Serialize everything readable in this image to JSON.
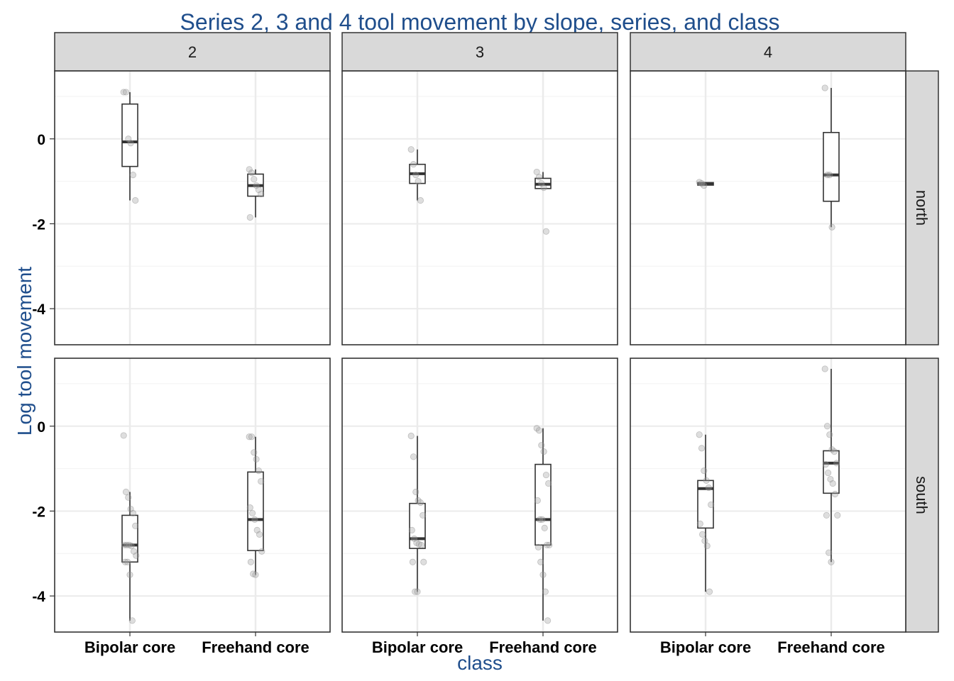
{
  "chart_data": {
    "type": "box",
    "title": "Series 2, 3 and 4 tool movement by slope, series, and class",
    "xlabel": "class",
    "ylabel": "Log tool movement",
    "categories": [
      "Bipolar core",
      "Freehand core"
    ],
    "yticks": [
      0,
      -2,
      -4
    ],
    "ylim": [
      -4.85,
      1.6
    ],
    "grid": true,
    "facet_cols": [
      "2",
      "3",
      "4"
    ],
    "facet_rows": [
      "north",
      "south"
    ],
    "colors": {
      "title": "#1f4e8c",
      "strip_fill": "#d9d9d9",
      "point": "#a0a0a0",
      "grid": "#ebebeb"
    },
    "panels": [
      {
        "col": "2",
        "row": "north",
        "groups": [
          {
            "class": "Bipolar core",
            "whisker_low": -1.45,
            "q1": -0.65,
            "median": -0.07,
            "q3": 0.82,
            "whisker_high": 1.1,
            "points": [
              1.1,
              1.1,
              0.0,
              -0.1,
              -0.85,
              -1.45
            ]
          },
          {
            "class": "Freehand core",
            "whisker_low": -1.85,
            "q1": -1.35,
            "median": -1.1,
            "q3": -0.83,
            "whisker_high": -0.72,
            "points": [
              -0.72,
              -0.8,
              -0.95,
              -1.1,
              -1.2,
              -1.3,
              -1.85
            ]
          }
        ]
      },
      {
        "col": "3",
        "row": "north",
        "groups": [
          {
            "class": "Bipolar core",
            "whisker_low": -1.45,
            "q1": -1.05,
            "median": -0.82,
            "q3": -0.6,
            "whisker_high": -0.25,
            "points": [
              -0.25,
              -0.6,
              -0.85,
              -1.0,
              -1.45
            ]
          },
          {
            "class": "Freehand core",
            "whisker_low": -1.17,
            "q1": -1.17,
            "median": -1.07,
            "q3": -0.93,
            "whisker_high": -0.78,
            "points": [
              -0.78,
              -0.9,
              -1.05,
              -1.15,
              -2.18
            ]
          }
        ]
      },
      {
        "col": "4",
        "row": "north",
        "groups": [
          {
            "class": "Bipolar core",
            "whisker_low": -1.1,
            "q1": -1.09,
            "median": -1.06,
            "q3": -1.03,
            "whisker_high": -1.02,
            "points": [
              -1.02,
              -1.05,
              -1.1
            ]
          },
          {
            "class": "Freehand core",
            "whisker_low": -2.08,
            "q1": -1.47,
            "median": -0.85,
            "q3": 0.15,
            "whisker_high": 1.2,
            "points": [
              1.2,
              -0.85,
              -0.85,
              -2.08
            ]
          }
        ]
      },
      {
        "col": "2",
        "row": "south",
        "groups": [
          {
            "class": "Bipolar core",
            "whisker_low": -4.58,
            "q1": -3.2,
            "median": -2.8,
            "q3": -2.1,
            "whisker_high": -1.55,
            "points": [
              -0.22,
              -1.55,
              -1.68,
              -1.95,
              -2.05,
              -2.35,
              -2.8,
              -2.8,
              -2.8,
              -2.82,
              -2.95,
              -3.05,
              -3.2,
              -3.2,
              -3.5,
              -4.58
            ]
          },
          {
            "class": "Freehand core",
            "whisker_low": -3.5,
            "q1": -2.93,
            "median": -2.2,
            "q3": -1.08,
            "whisker_high": -0.25,
            "points": [
              -0.25,
              -0.25,
              -0.62,
              -0.78,
              -1.05,
              -1.3,
              -1.92,
              -2.05,
              -2.2,
              -2.45,
              -2.55,
              -2.95,
              -3.2,
              -3.48,
              -3.5
            ]
          }
        ]
      },
      {
        "col": "3",
        "row": "south",
        "groups": [
          {
            "class": "Bipolar core",
            "whisker_low": -3.9,
            "q1": -2.88,
            "median": -2.65,
            "q3": -1.82,
            "whisker_high": -0.23,
            "points": [
              -0.23,
              -0.72,
              -1.55,
              -1.75,
              -1.8,
              -2.1,
              -2.45,
              -2.65,
              -2.75,
              -2.78,
              -2.8,
              -3.2,
              -3.2,
              -3.9,
              -3.9
            ]
          },
          {
            "class": "Freehand core",
            "whisker_low": -4.58,
            "q1": -2.8,
            "median": -2.2,
            "q3": -0.9,
            "whisker_high": -0.05,
            "points": [
              -0.05,
              -0.1,
              -0.45,
              -0.6,
              -1.15,
              -1.35,
              -1.75,
              -2.2,
              -2.2,
              -2.4,
              -2.8,
              -2.8,
              -2.85,
              -3.2,
              -3.5,
              -3.9,
              -4.58
            ]
          }
        ]
      },
      {
        "col": "4",
        "row": "south",
        "groups": [
          {
            "class": "Bipolar core",
            "whisker_low": -3.9,
            "q1": -2.4,
            "median": -1.47,
            "q3": -1.28,
            "whisker_high": -0.2,
            "points": [
              -0.2,
              -0.52,
              -1.05,
              -1.28,
              -1.45,
              -1.85,
              -2.3,
              -2.55,
              -2.7,
              -2.82,
              -3.9
            ]
          },
          {
            "class": "Freehand core",
            "whisker_low": -3.2,
            "q1": -1.58,
            "median": -0.87,
            "q3": -0.58,
            "whisker_high": 1.35,
            "points": [
              1.35,
              0.0,
              -0.2,
              -0.55,
              -0.6,
              -0.87,
              -0.9,
              -1.1,
              -1.25,
              -1.35,
              -1.6,
              -2.1,
              -2.1,
              -2.98,
              -3.2
            ]
          }
        ]
      }
    ]
  }
}
